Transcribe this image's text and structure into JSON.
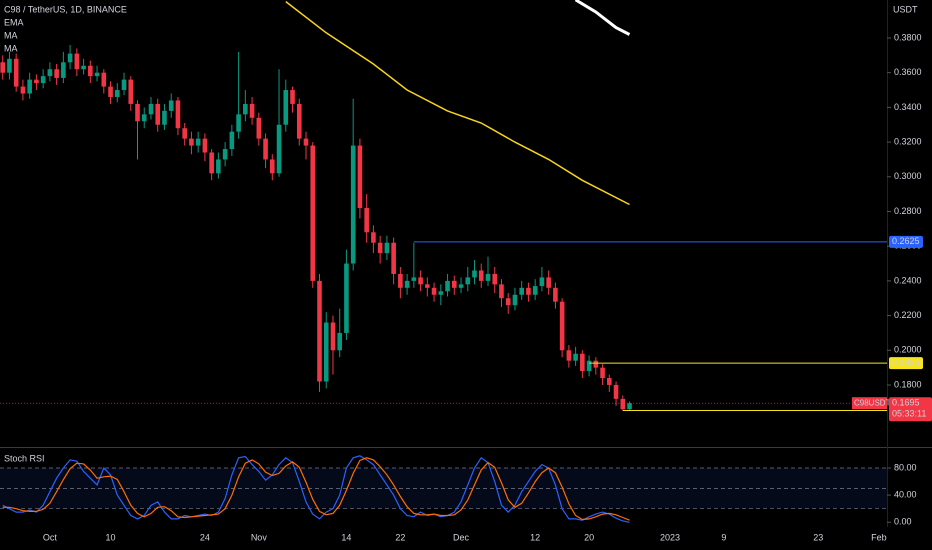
{
  "chart_data": [
    {
      "type": "candlestick",
      "title": "C98 / TetherUS, 1D, BINANCE",
      "indicators": [
        "EMA",
        "MA",
        "MA"
      ],
      "currency": "USDT",
      "up_color": "#089981",
      "down_color": "#f23645",
      "xlim": [
        -0.4,
        131.2
      ],
      "xticks": [
        {
          "value": 7,
          "label": "Oct"
        },
        {
          "value": 16,
          "label": "10"
        },
        {
          "value": 30,
          "label": "24"
        },
        {
          "value": 38,
          "label": "Nov"
        },
        {
          "value": 51,
          "label": "14"
        },
        {
          "value": 59,
          "label": "22"
        },
        {
          "value": 68,
          "label": "Dec"
        },
        {
          "value": 79,
          "label": "12"
        },
        {
          "value": 87,
          "label": "20"
        },
        {
          "value": 99,
          "label": "2023"
        },
        {
          "value": 107,
          "label": "9"
        },
        {
          "value": 121,
          "label": "23"
        },
        {
          "value": 130,
          "label": "Feb"
        }
      ],
      "ylim": [
        0.1454,
        0.4019
      ],
      "yticks": [
        {
          "value": 0.18,
          "label": "0.1800"
        },
        {
          "value": 0.2,
          "label": "0.2000"
        },
        {
          "value": 0.22,
          "label": "0.2200"
        },
        {
          "value": 0.24,
          "label": "0.2400"
        },
        {
          "value": 0.26,
          "label": "0.2600"
        },
        {
          "value": 0.28,
          "label": "0.2800"
        },
        {
          "value": 0.3,
          "label": "0.3000"
        },
        {
          "value": 0.32,
          "label": "0.3200"
        },
        {
          "value": 0.34,
          "label": "0.3400"
        },
        {
          "value": 0.36,
          "label": "0.3600"
        },
        {
          "value": 0.38,
          "label": "0.3800"
        }
      ],
      "open": [
        0.366,
        0.36,
        0.368,
        0.352,
        0.348,
        0.356,
        0.354,
        0.358,
        0.362,
        0.357,
        0.366,
        0.371,
        0.362,
        0.364,
        0.358,
        0.36,
        0.352,
        0.346,
        0.35,
        0.356,
        0.342,
        0.332,
        0.336,
        0.342,
        0.33,
        0.338,
        0.344,
        0.328,
        0.322,
        0.318,
        0.322,
        0.314,
        0.302,
        0.31,
        0.316,
        0.326,
        0.336,
        0.342,
        0.334,
        0.322,
        0.31,
        0.302,
        0.33,
        0.35,
        0.342,
        0.322,
        0.318,
        0.24,
        0.182,
        0.216,
        0.2,
        0.21,
        0.25,
        0.318,
        0.282,
        0.268,
        0.262,
        0.256,
        0.262,
        0.244,
        0.236,
        0.24,
        0.242,
        0.238,
        0.236,
        0.232,
        0.234,
        0.24,
        0.236,
        0.238,
        0.242,
        0.246,
        0.24,
        0.244,
        0.238,
        0.23,
        0.226,
        0.232,
        0.236,
        0.232,
        0.237,
        0.242,
        0.236,
        0.228,
        0.2,
        0.194,
        0.198,
        0.188,
        0.194,
        0.19,
        0.184,
        0.18,
        0.172,
        0.166
      ],
      "high": [
        0.37,
        0.372,
        0.371,
        0.356,
        0.36,
        0.359,
        0.362,
        0.366,
        0.365,
        0.372,
        0.376,
        0.374,
        0.368,
        0.367,
        0.364,
        0.362,
        0.355,
        0.354,
        0.36,
        0.358,
        0.344,
        0.34,
        0.346,
        0.345,
        0.342,
        0.348,
        0.346,
        0.331,
        0.326,
        0.326,
        0.325,
        0.316,
        0.314,
        0.32,
        0.33,
        0.372,
        0.35,
        0.346,
        0.337,
        0.325,
        0.313,
        0.362,
        0.356,
        0.352,
        0.345,
        0.326,
        0.32,
        0.244,
        0.222,
        0.22,
        0.224,
        0.258,
        0.345,
        0.322,
        0.29,
        0.272,
        0.266,
        0.266,
        0.265,
        0.248,
        0.244,
        0.262,
        0.246,
        0.242,
        0.239,
        0.238,
        0.244,
        0.243,
        0.242,
        0.248,
        0.252,
        0.25,
        0.254,
        0.248,
        0.241,
        0.233,
        0.236,
        0.24,
        0.239,
        0.241,
        0.248,
        0.246,
        0.239,
        0.23,
        0.203,
        0.202,
        0.2,
        0.197,
        0.196,
        0.192,
        0.186,
        0.182,
        0.174,
        0.1705
      ],
      "low": [
        0.356,
        0.356,
        0.349,
        0.344,
        0.345,
        0.35,
        0.351,
        0.355,
        0.353,
        0.354,
        0.362,
        0.358,
        0.359,
        0.354,
        0.355,
        0.348,
        0.342,
        0.343,
        0.347,
        0.338,
        0.31,
        0.328,
        0.333,
        0.326,
        0.327,
        0.334,
        0.324,
        0.318,
        0.313,
        0.314,
        0.309,
        0.298,
        0.299,
        0.306,
        0.312,
        0.322,
        0.332,
        0.33,
        0.318,
        0.305,
        0.298,
        0.3,
        0.326,
        0.337,
        0.318,
        0.31,
        0.236,
        0.176,
        0.178,
        0.186,
        0.196,
        0.206,
        0.246,
        0.276,
        0.262,
        0.256,
        0.25,
        0.252,
        0.238,
        0.23,
        0.232,
        0.236,
        0.234,
        0.231,
        0.228,
        0.226,
        0.231,
        0.232,
        0.233,
        0.234,
        0.238,
        0.236,
        0.237,
        0.233,
        0.225,
        0.221,
        0.223,
        0.229,
        0.228,
        0.229,
        0.234,
        0.232,
        0.224,
        0.196,
        0.19,
        0.191,
        0.184,
        0.185,
        0.186,
        0.18,
        0.176,
        0.168,
        0.1653,
        0.1653
      ],
      "close": [
        0.36,
        0.368,
        0.352,
        0.348,
        0.356,
        0.354,
        0.358,
        0.362,
        0.357,
        0.366,
        0.371,
        0.362,
        0.364,
        0.358,
        0.36,
        0.352,
        0.346,
        0.35,
        0.356,
        0.342,
        0.332,
        0.336,
        0.342,
        0.33,
        0.338,
        0.344,
        0.328,
        0.322,
        0.318,
        0.322,
        0.314,
        0.302,
        0.31,
        0.316,
        0.326,
        0.336,
        0.342,
        0.334,
        0.322,
        0.31,
        0.302,
        0.33,
        0.35,
        0.342,
        0.322,
        0.318,
        0.24,
        0.182,
        0.216,
        0.2,
        0.21,
        0.25,
        0.318,
        0.282,
        0.268,
        0.262,
        0.256,
        0.262,
        0.244,
        0.236,
        0.24,
        0.242,
        0.238,
        0.236,
        0.232,
        0.234,
        0.24,
        0.236,
        0.238,
        0.242,
        0.246,
        0.24,
        0.244,
        0.238,
        0.23,
        0.226,
        0.232,
        0.236,
        0.232,
        0.237,
        0.242,
        0.236,
        0.228,
        0.2,
        0.194,
        0.198,
        0.188,
        0.194,
        0.19,
        0.184,
        0.18,
        0.172,
        0.166,
        0.1695
      ],
      "series": [
        {
          "name": "MA",
          "color": "#f7d51c",
          "x": [
            42,
            48,
            55,
            60,
            66,
            71,
            76,
            81,
            86,
            93
          ],
          "values": [
            0.401,
            0.383,
            0.365,
            0.35,
            0.338,
            0.331,
            0.32,
            0.31,
            0.298,
            0.284
          ]
        },
        {
          "name": "MA",
          "color": "#ffffff",
          "x": [
            85,
            88,
            91,
            93
          ],
          "values": [
            0.402,
            0.395,
            0.386,
            0.382
          ]
        }
      ],
      "levels": [
        {
          "value": 0.2625,
          "x": 61,
          "color": "#2962ff"
        },
        {
          "value": 0.1926,
          "x": 87,
          "color": "#f7e51c"
        },
        {
          "value": 0.1653,
          "x": 92,
          "color": "#f7e51c"
        }
      ],
      "last_price": {
        "symbol": "C98USDT",
        "value": 0.1695,
        "countdown": "05:33:11",
        "color": "#f23645"
      }
    },
    {
      "type": "line",
      "title": "Stoch RSI",
      "xlim": [
        -0.4,
        131.2
      ],
      "ylim": [
        -7,
        108
      ],
      "yticks": [
        {
          "value": 80,
          "label": "80.00"
        },
        {
          "value": 40,
          "label": "40.00"
        },
        {
          "value": 0,
          "label": "0.00"
        }
      ],
      "bands": [
        80,
        50,
        20
      ],
      "band_color": "#2962ff",
      "series": [
        {
          "name": "K",
          "color": "#2962ff",
          "values": [
            25,
            20,
            15,
            15,
            18,
            15,
            25,
            45,
            65,
            80,
            92,
            90,
            75,
            65,
            55,
            80,
            70,
            40,
            25,
            10,
            5,
            10,
            25,
            30,
            15,
            5,
            5,
            10,
            8,
            10,
            12,
            10,
            15,
            35,
            70,
            95,
            97,
            85,
            75,
            62,
            70,
            85,
            95,
            88,
            60,
            30,
            12,
            5,
            15,
            20,
            40,
            80,
            95,
            98,
            92,
            85,
            70,
            55,
            40,
            20,
            10,
            8,
            15,
            10,
            12,
            8,
            10,
            15,
            30,
            55,
            80,
            95,
            88,
            60,
            25,
            15,
            25,
            45,
            60,
            75,
            85,
            80,
            55,
            20,
            5,
            5,
            3,
            8,
            12,
            15,
            12,
            6,
            2,
            0
          ]
        },
        {
          "name": "D",
          "color": "#ff6d00",
          "values": [
            22,
            22,
            20,
            17,
            16,
            16,
            19,
            28,
            45,
            63,
            79,
            87,
            86,
            77,
            65,
            67,
            68,
            63,
            45,
            25,
            13,
            8,
            13,
            22,
            23,
            17,
            8,
            7,
            8,
            9,
            10,
            11,
            12,
            20,
            40,
            67,
            87,
            92,
            86,
            74,
            69,
            72,
            83,
            89,
            81,
            59,
            34,
            16,
            11,
            13,
            25,
            47,
            72,
            91,
            95,
            92,
            82,
            70,
            55,
            38,
            23,
            13,
            11,
            11,
            12,
            10,
            10,
            11,
            18,
            33,
            55,
            77,
            88,
            81,
            58,
            33,
            22,
            28,
            43,
            60,
            73,
            80,
            73,
            52,
            27,
            10,
            4,
            5,
            8,
            12,
            13,
            11,
            7,
            3
          ]
        }
      ]
    }
  ]
}
